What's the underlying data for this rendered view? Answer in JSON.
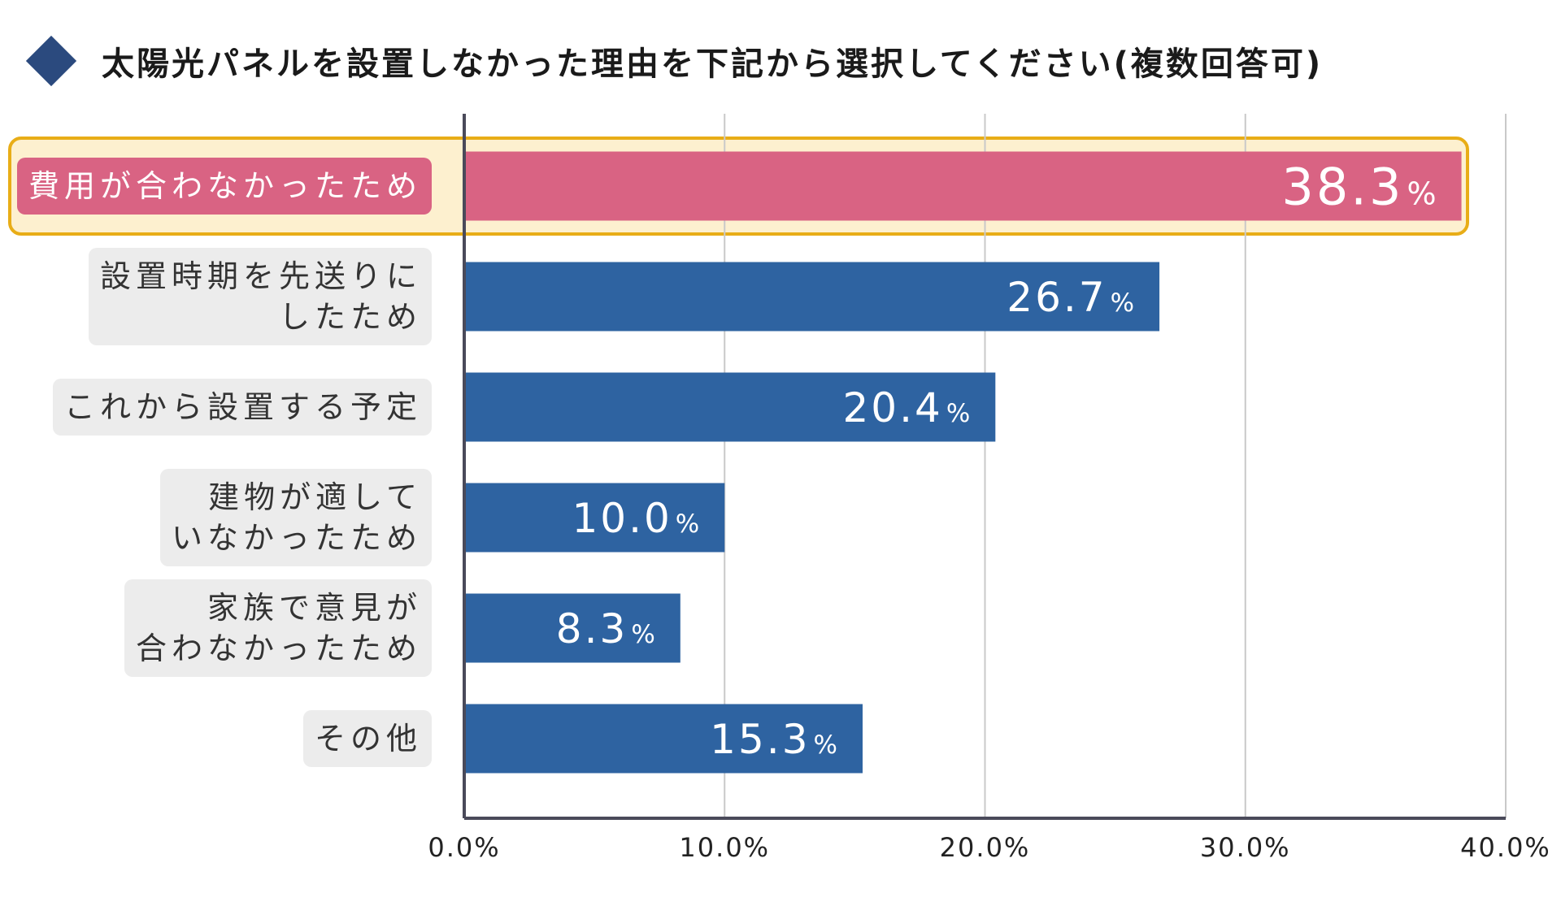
{
  "title": "太陽光パネルを設置しなかった理由を下記から選択してください(複数回答可)",
  "chart_data": {
    "type": "bar",
    "orientation": "horizontal",
    "title": "太陽光パネルを設置しなかった理由を下記から選択してください(複数回答可)",
    "categories": [
      [
        "費用が合わなかったため"
      ],
      [
        "設置時期を先送りに",
        "したため"
      ],
      [
        "これから設置する予定"
      ],
      [
        "建物が適して",
        "いなかったため"
      ],
      [
        "家族で意見が",
        "合わなかったため"
      ],
      [
        "その他"
      ]
    ],
    "values": [
      38.3,
      26.7,
      20.4,
      10.0,
      8.3,
      15.3
    ],
    "value_labels": [
      "38.3",
      "26.7",
      "20.4",
      "10.0",
      "8.3",
      "15.3"
    ],
    "value_unit": "%",
    "xlim": [
      0,
      40
    ],
    "xticks": [
      "0.0%",
      "10.0%",
      "20.0%",
      "30.0%",
      "40.0%"
    ],
    "grid": true,
    "highlight_index": 0,
    "colors": {
      "bar": "#2e63a1",
      "highlight_bar": "#d96383",
      "highlight_frame": "#e8ad17",
      "highlight_fill": "#fdf0cf",
      "grid": "#c9c9c9",
      "axis": "#4a4a5a",
      "diamond": "#2b4a7e"
    }
  }
}
